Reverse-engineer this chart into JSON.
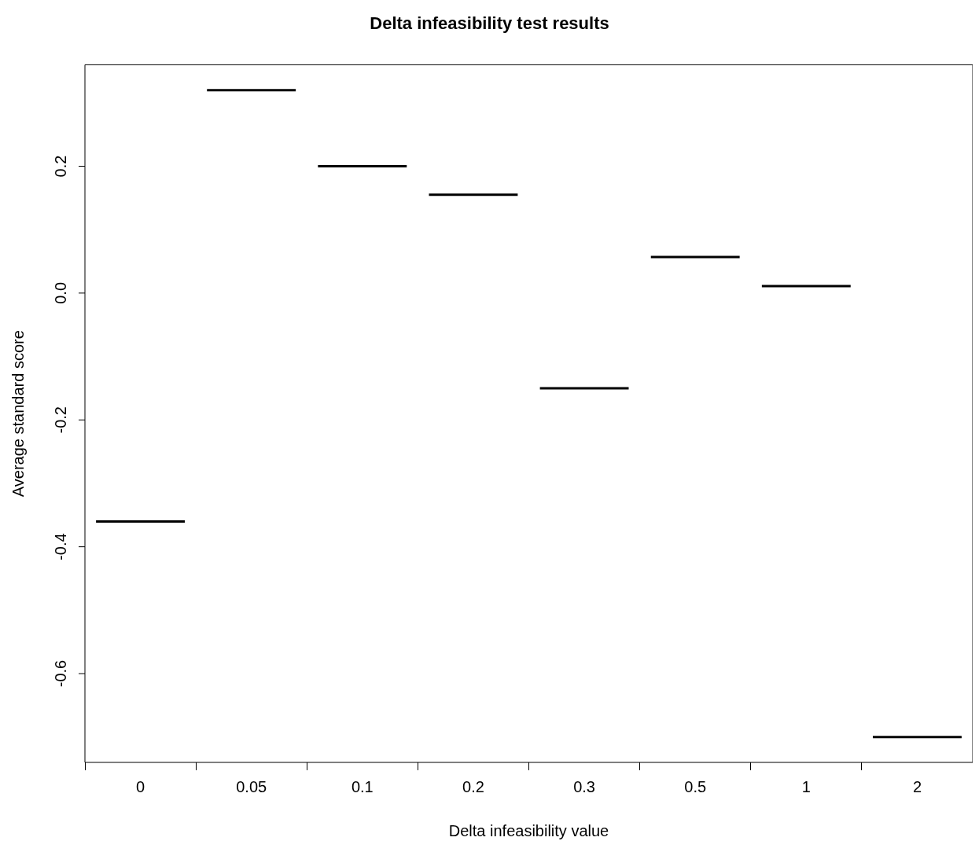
{
  "chart_data": {
    "type": "box",
    "title": "Delta infeasibility test results",
    "xlabel": "Delta infeasibility value",
    "ylabel": "Average standard score",
    "categories": [
      "0",
      "0.05",
      "0.1",
      "0.2",
      "0.3",
      "0.5",
      "1",
      "2"
    ],
    "boxes": [
      {
        "low": -0.36,
        "q1": -0.36,
        "median": -0.36,
        "q3": -0.36,
        "high": -0.36
      },
      {
        "low": 0.32,
        "q1": 0.32,
        "median": 0.32,
        "q3": 0.32,
        "high": 0.32
      },
      {
        "low": 0.2,
        "q1": 0.2,
        "median": 0.2,
        "q3": 0.2,
        "high": 0.2
      },
      {
        "low": 0.155,
        "q1": 0.155,
        "median": 0.155,
        "q3": 0.155,
        "high": 0.155
      },
      {
        "low": -0.15,
        "q1": -0.15,
        "median": -0.15,
        "q3": -0.15,
        "high": -0.15
      },
      {
        "low": 0.057,
        "q1": 0.057,
        "median": 0.057,
        "q3": 0.057,
        "high": 0.057
      },
      {
        "low": 0.011,
        "q1": 0.011,
        "median": 0.011,
        "q3": 0.011,
        "high": 0.011
      },
      {
        "low": -0.7,
        "q1": -0.7,
        "median": -0.7,
        "q3": -0.7,
        "high": -0.7
      }
    ],
    "color": "#000000",
    "ylim": [
      -0.74,
      0.36
    ],
    "yticks": [
      -0.6,
      -0.4,
      -0.2,
      {
        "value": 0,
        "label": "0.0"
      },
      0.2
    ],
    "grid": false,
    "legend": false
  }
}
